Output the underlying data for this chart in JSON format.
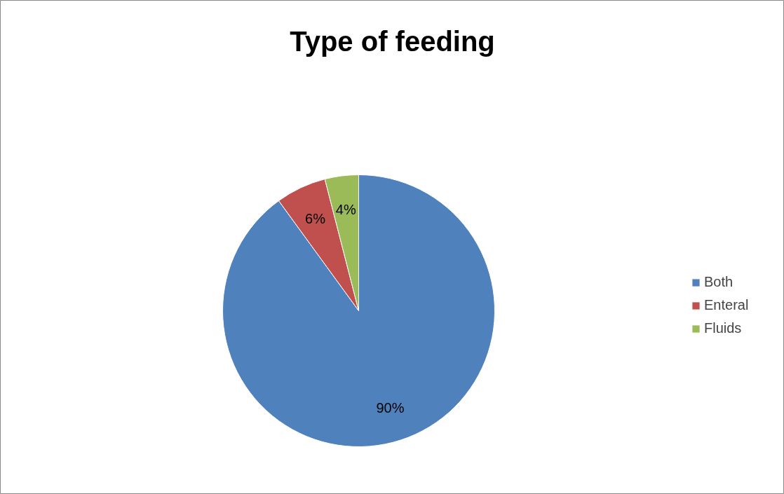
{
  "chart_data": {
    "type": "pie",
    "title": "Type of feeding",
    "categories": [
      "Both",
      "Enteral",
      "Fluids"
    ],
    "values": [
      90,
      6,
      4
    ],
    "colors": [
      "#4f81bd",
      "#c0504d",
      "#9bbb59"
    ],
    "value_labels": [
      "90%",
      "6%",
      "4%"
    ],
    "legend": "right"
  }
}
